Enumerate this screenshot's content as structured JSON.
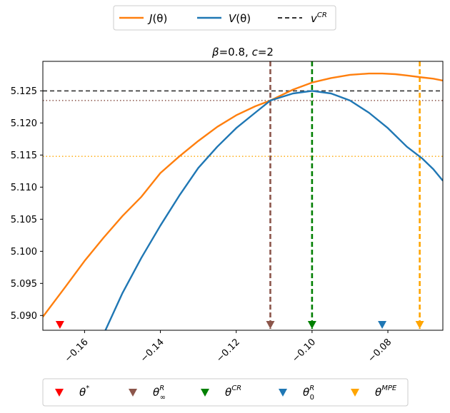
{
  "chart_data": {
    "type": "line",
    "title_parts": {
      "beta_symbol": "β",
      "beta_value": "=0.8, ",
      "c_symbol": "c",
      "c_value": "=2"
    },
    "xlim": [
      -0.171,
      -0.0655
    ],
    "ylim": [
      5.0877,
      5.1296
    ],
    "x_ticks": [
      -0.16,
      -0.14,
      -0.12,
      -0.1,
      -0.08
    ],
    "x_tick_labels": [
      "−0.16",
      "−0.14",
      "−0.12",
      "−0.10",
      "−0.08"
    ],
    "y_ticks": [
      5.09,
      5.095,
      5.1,
      5.105,
      5.11,
      5.115,
      5.12,
      5.125
    ],
    "y_tick_labels": [
      "5.090",
      "5.095",
      "5.100",
      "5.105",
      "5.110",
      "5.115",
      "5.120",
      "5.125"
    ],
    "series": [
      {
        "key": "J",
        "color": "#ff7f0e",
        "x": [
          -0.171,
          -0.165,
          -0.16,
          -0.155,
          -0.15,
          -0.145,
          -0.14,
          -0.135,
          -0.13,
          -0.125,
          -0.12,
          -0.115,
          -0.111,
          -0.105,
          -0.1,
          -0.095,
          -0.09,
          -0.085,
          -0.0815,
          -0.078,
          -0.075,
          -0.071,
          -0.068,
          -0.0655
        ],
        "y": [
          5.0898,
          5.0945,
          5.0985,
          5.1021,
          5.1055,
          5.1085,
          5.1122,
          5.1148,
          5.1172,
          5.1194,
          5.1212,
          5.1226,
          5.1235,
          5.1252,
          5.1263,
          5.127,
          5.1275,
          5.1277,
          5.1277,
          5.1276,
          5.1274,
          5.1271,
          5.1269,
          5.1266
        ]
      },
      {
        "key": "V",
        "color": "#1f77b4",
        "x": [
          -0.1545,
          -0.15,
          -0.145,
          -0.14,
          -0.135,
          -0.13,
          -0.125,
          -0.12,
          -0.115,
          -0.111,
          -0.105,
          -0.1,
          -0.095,
          -0.09,
          -0.085,
          -0.08,
          -0.075,
          -0.071,
          -0.068,
          -0.0655
        ],
        "y": [
          5.0877,
          5.0935,
          5.099,
          5.104,
          5.1087,
          5.113,
          5.1163,
          5.1192,
          5.1216,
          5.1235,
          5.1246,
          5.125,
          5.1246,
          5.1235,
          5.1216,
          5.1192,
          5.1163,
          5.1145,
          5.1128,
          5.111
        ]
      }
    ],
    "hlines": [
      {
        "key": "vCR",
        "y": 5.125,
        "color": "#333333",
        "style": "dashed"
      },
      {
        "key": "thinf-level",
        "y": 5.1235,
        "color": "#8c564b",
        "style": "dotted"
      },
      {
        "key": "mpe-level",
        "y": 5.1148,
        "color": "#ffa500",
        "style": "dotted"
      }
    ],
    "vlines": [
      {
        "key": "theta_inf_R",
        "x": -0.111,
        "color": "#8c564b"
      },
      {
        "key": "theta_CR",
        "x": -0.1,
        "color": "#008000"
      },
      {
        "key": "theta_MPE",
        "x": -0.0716,
        "color": "#ffa500"
      }
    ],
    "markers": [
      {
        "key": "theta_star",
        "x": -0.1665,
        "color": "#ff0000"
      },
      {
        "key": "theta_inf_R",
        "x": -0.111,
        "color": "#8c564b"
      },
      {
        "key": "theta_CR",
        "x": -0.1,
        "color": "#008000"
      },
      {
        "key": "theta_0_R",
        "x": -0.0815,
        "color": "#1f77b4"
      },
      {
        "key": "theta_MPE",
        "x": -0.0716,
        "color": "#ffa500"
      }
    ],
    "top_legend": [
      {
        "symbol": "J",
        "arg": "(θ)",
        "color": "#ff7f0e",
        "style": "solid"
      },
      {
        "symbol": "V",
        "arg": "(θ)",
        "color": "#1f77b4",
        "style": "solid"
      },
      {
        "symbol": "v",
        "sup": "CR",
        "color": "#333333",
        "style": "dashed"
      }
    ],
    "bottom_legend": [
      {
        "symbol": "θ",
        "sup": "*",
        "sub": "",
        "color": "#ff0000"
      },
      {
        "symbol": "θ",
        "sup": "R",
        "sub": "∞",
        "color": "#8c564b"
      },
      {
        "symbol": "θ",
        "sup": "CR",
        "sub": "",
        "color": "#008000"
      },
      {
        "symbol": "θ",
        "sup": "R",
        "sub": "0",
        "color": "#1f77b4"
      },
      {
        "symbol": "θ",
        "sup": "MPE",
        "sub": "",
        "color": "#ffa500"
      }
    ]
  }
}
